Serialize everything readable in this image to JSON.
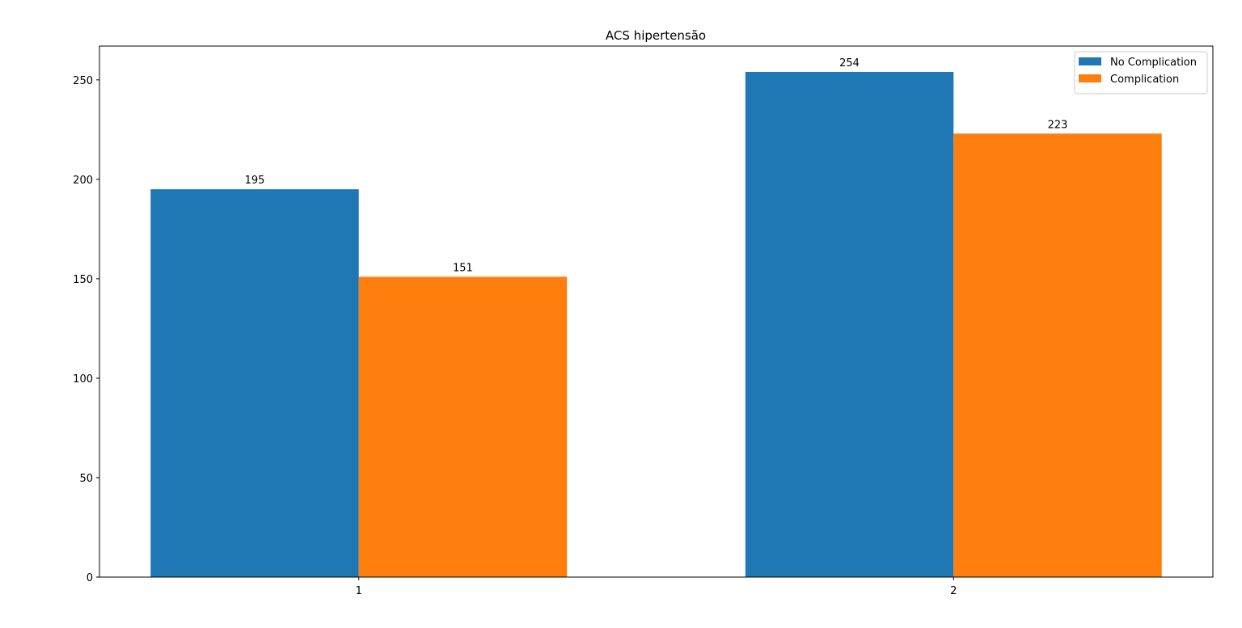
{
  "chart_data": {
    "type": "bar",
    "title": "ACS hipertensão",
    "xlabel": "",
    "ylabel": "",
    "categories": [
      "1",
      "2"
    ],
    "series": [
      {
        "name": "No Complication",
        "values": [
          195,
          254
        ],
        "color": "#1f77b4"
      },
      {
        "name": "Complication",
        "values": [
          151,
          223
        ],
        "color": "#ff7f0e"
      }
    ],
    "ylim": [
      0,
      267
    ],
    "yticks": [
      0,
      50,
      100,
      150,
      200,
      250
    ],
    "grid": false,
    "legend_position": "top-right"
  }
}
